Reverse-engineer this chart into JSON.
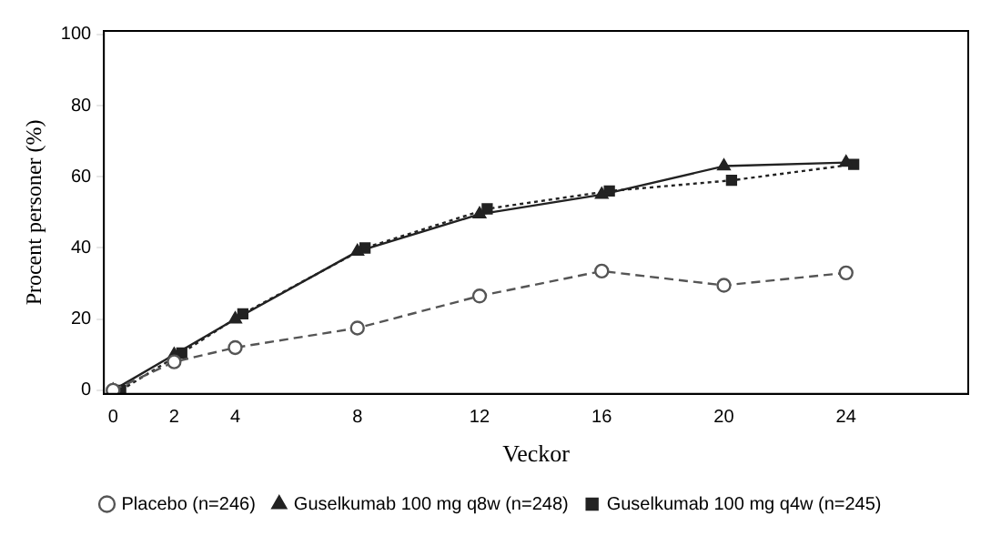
{
  "chart_data": {
    "type": "line",
    "xlabel": "Veckor",
    "ylabel": "Procent personer (%)",
    "x": [
      0,
      2,
      4,
      8,
      12,
      16,
      20,
      24
    ],
    "xlim": [
      -0.3,
      28
    ],
    "xticks": [
      0,
      2,
      4,
      8,
      12,
      16,
      20,
      24
    ],
    "ylim": [
      -1,
      101
    ],
    "yticks": [
      0,
      20,
      40,
      60,
      80,
      100
    ],
    "legend": "bottom",
    "grid": false,
    "series": [
      {
        "name": "Placebo (n=246)",
        "color": "#555555",
        "marker": "circle",
        "line_style": "dashed",
        "values": [
          0,
          8,
          12,
          17.5,
          26.5,
          33.5,
          29.5,
          33
        ]
      },
      {
        "name": "Guselkumab 100 mg q8w (n=248)",
        "color": "#222222",
        "marker": "triangle",
        "line_style": "solid",
        "values": [
          0,
          10,
          20,
          39,
          49.5,
          55,
          63,
          64
        ]
      },
      {
        "name": "Guselkumab 100 mg q4w (n=245)",
        "color": "#222222",
        "marker": "square",
        "line_style": "dotted",
        "x": [
          0.25,
          2.25,
          4.25,
          8.25,
          12.25,
          16.25,
          20.25,
          24.25
        ],
        "values": [
          0,
          10.5,
          21.5,
          40,
          51,
          56,
          59,
          63.5
        ]
      }
    ]
  }
}
